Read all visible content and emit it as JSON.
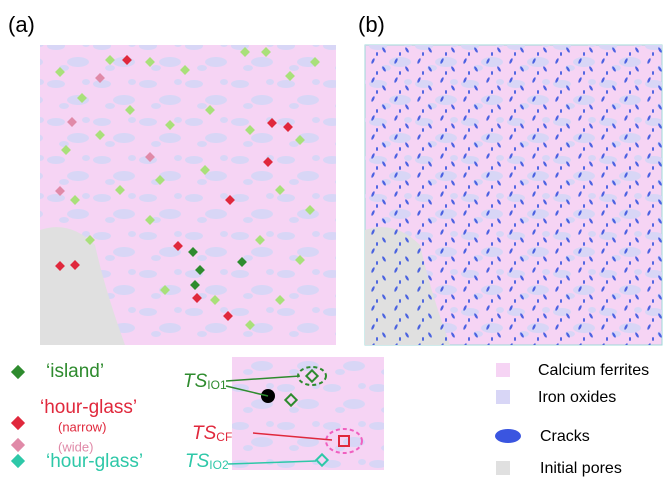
{
  "panels": [
    {
      "label": "(a)"
    },
    {
      "label": "(b)"
    }
  ],
  "legend_sites": {
    "island": "‘island’",
    "hour_glass_cf": "‘hour-glass’",
    "narrow": "(narrow)",
    "wide": "(wide)",
    "hour_glass_io2": "‘hour-glass’"
  },
  "inset": {
    "ts_io1": {
      "main": "TS",
      "sub": "IO1"
    },
    "ts_cf": {
      "main": "TS",
      "sub": "CF"
    },
    "ts_io2": {
      "main": "TS",
      "sub": "IO2"
    }
  },
  "legend_phases": [
    "Calcium ferrites",
    "Iron oxides",
    "Cracks",
    "Initial pores"
  ]
}
